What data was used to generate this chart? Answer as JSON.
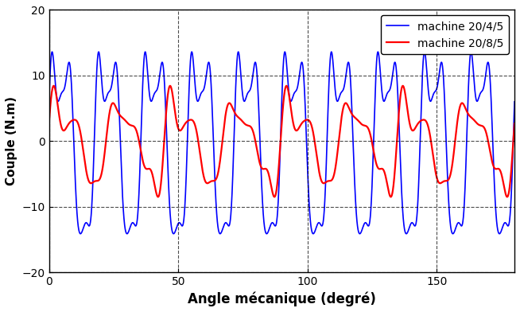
{
  "xlabel": "Angle mécanique (degré)",
  "ylabel": "Couple (N.m)",
  "xlim": [
    0,
    180
  ],
  "ylim": [
    -20,
    20
  ],
  "xticks": [
    0,
    50,
    100,
    150
  ],
  "yticks": [
    -20,
    -10,
    0,
    10,
    20
  ],
  "legend": [
    "machine 20/4/5",
    "machine 20/8/5"
  ],
  "blue_color": "#0000FF",
  "red_color": "#FF0000",
  "figsize": [
    6.54,
    3.92
  ],
  "dpi": 100,
  "grid_linestyle": "--",
  "grid_color": "#000000",
  "grid_alpha": 0.7,
  "linewidth_blue": 1.2,
  "linewidth_red": 1.6,
  "blue_main_amp": 13.0,
  "blue_main_freq": 10,
  "blue_harmonic2_amp": 4.5,
  "blue_harmonic3_amp": 2.5,
  "blue_harmonic4_amp": 1.5,
  "blue_harmonic5_amp": 1.0,
  "red_main_amp": 5.5,
  "red_main_freq": 8,
  "red_harmonic2_amp": 2.5,
  "red_harmonic3_amp": 1.5,
  "red_harmonic4_amp": 0.8
}
